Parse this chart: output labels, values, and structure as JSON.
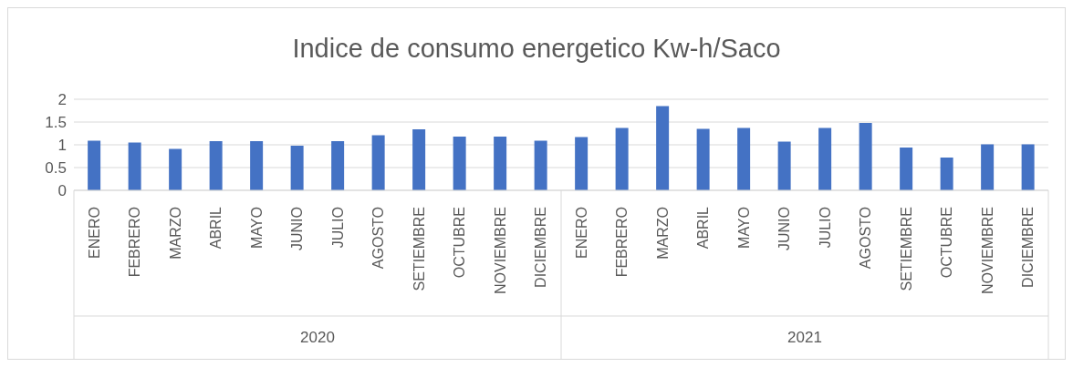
{
  "chart_data": {
    "type": "bar",
    "title": "Indice de consumo energetico Kw-h/Saco",
    "categories": [
      "ENERO",
      "FEBRERO",
      "MARZO",
      "ABRIL",
      "MAYO",
      "JUNIO",
      "JULIO",
      "AGOSTO",
      "SETIEMBRE",
      "OCTUBRE",
      "NOVIEMBRE",
      "DICIEMBRE",
      "ENERO",
      "FEBRERO",
      "MARZO",
      "ABRIL",
      "MAYO",
      "JUNIO",
      "JULIO",
      "AGOSTO",
      "SETIEMBRE",
      "OCTUBRE",
      "NOVIEMBRE",
      "DICIEMBRE"
    ],
    "values": [
      1.09,
      1.05,
      0.91,
      1.08,
      1.08,
      0.98,
      1.08,
      1.21,
      1.34,
      1.18,
      1.18,
      1.09,
      1.17,
      1.37,
      1.85,
      1.35,
      1.37,
      1.07,
      1.37,
      1.48,
      0.94,
      0.72,
      1.01,
      1.01
    ],
    "color": "#4472c4",
    "ylim": [
      0,
      2
    ],
    "yticks": [
      0,
      0.5,
      1,
      1.5,
      2
    ],
    "grid": "y",
    "annotations": [
      "2020",
      "2021"
    ]
  }
}
